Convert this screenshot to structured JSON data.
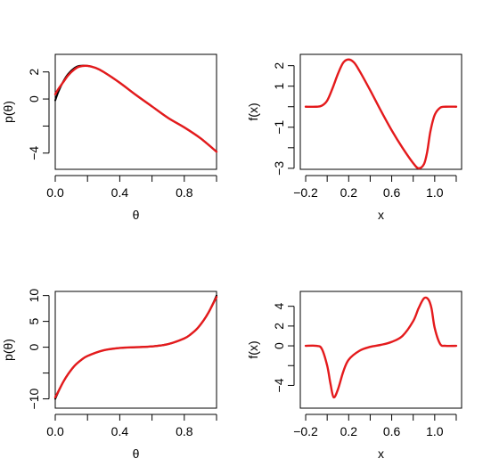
{
  "chart_data": [
    {
      "type": "line",
      "panel": "top-left",
      "xlabel": "θ",
      "ylabel": "p(θ)",
      "xlim": [
        0,
        1
      ],
      "ylim": [
        -5.2,
        3.3
      ],
      "xticks": [
        0.0,
        0.4,
        0.8
      ],
      "xtick_labels": [
        "0.0",
        "0.4",
        "0.8"
      ],
      "xticks_minor": [
        0.2,
        0.6,
        1.0
      ],
      "yticks": [
        -4,
        0,
        2
      ],
      "ytick_labels": [
        "−4",
        "0",
        "2"
      ],
      "yticks_minor": [
        -2
      ],
      "series": [
        {
          "color": "#000000",
          "x": [
            0,
            0.02,
            0.05,
            0.08,
            0.12,
            0.15,
            0.2,
            0.25,
            0.3,
            0.4,
            0.5,
            0.6,
            0.7,
            0.8,
            0.9,
            1.0
          ],
          "y": [
            -0.1,
            0.55,
            1.3,
            1.85,
            2.3,
            2.45,
            2.45,
            2.3,
            2.0,
            1.2,
            0.3,
            -0.55,
            -1.4,
            -2.1,
            -2.9,
            -3.9
          ]
        },
        {
          "color": "#e41a1c",
          "x": [
            0,
            0.02,
            0.05,
            0.08,
            0.12,
            0.15,
            0.2,
            0.25,
            0.3,
            0.4,
            0.5,
            0.6,
            0.7,
            0.8,
            0.9,
            1.0
          ],
          "y": [
            0.35,
            0.75,
            1.25,
            1.75,
            2.2,
            2.4,
            2.45,
            2.3,
            2.0,
            1.2,
            0.3,
            -0.55,
            -1.4,
            -2.1,
            -2.9,
            -3.9
          ]
        }
      ]
    },
    {
      "type": "line",
      "panel": "top-right",
      "xlabel": "x",
      "ylabel": "f(x)",
      "xlim": [
        -0.25,
        1.25
      ],
      "ylim": [
        -3.05,
        2.55
      ],
      "xticks": [
        -0.2,
        0.2,
        0.6,
        1.0
      ],
      "xtick_labels": [
        "−0.2",
        "0.2",
        "0.6",
        "1.0"
      ],
      "xticks_minor": [
        0.0,
        0.4,
        0.8,
        1.2
      ],
      "yticks": [
        -3,
        -1,
        1,
        2
      ],
      "ytick_labels": [
        "−3",
        "−1",
        "1",
        "2"
      ],
      "yticks_minor": [
        0,
        -2
      ],
      "series": [
        {
          "color": "#e41a1c",
          "x": [
            -0.2,
            -0.1,
            -0.05,
            0.0,
            0.05,
            0.1,
            0.15,
            0.2,
            0.25,
            0.3,
            0.4,
            0.5,
            0.6,
            0.7,
            0.8,
            0.85,
            0.9,
            0.93,
            0.96,
            1.0,
            1.05,
            1.1,
            1.2
          ],
          "y": [
            0,
            0,
            0.05,
            0.3,
            0.9,
            1.6,
            2.15,
            2.3,
            2.15,
            1.75,
            0.8,
            -0.2,
            -1.15,
            -2.0,
            -2.75,
            -3.0,
            -2.8,
            -2.2,
            -1.2,
            -0.4,
            -0.05,
            0,
            0
          ]
        }
      ]
    },
    {
      "type": "line",
      "panel": "bottom-left",
      "xlabel": "θ",
      "ylabel": "p(θ)",
      "xlim": [
        0,
        1
      ],
      "ylim": [
        -11.8,
        10.8
      ],
      "xticks": [
        0.0,
        0.4,
        0.8
      ],
      "xtick_labels": [
        "0.0",
        "0.4",
        "0.8"
      ],
      "xticks_minor": [
        0.2,
        0.6,
        1.0
      ],
      "yticks": [
        -10,
        0,
        5,
        10
      ],
      "ytick_labels": [
        "−10",
        "0",
        "5",
        "10"
      ],
      "yticks_minor": [
        -5
      ],
      "series": [
        {
          "color": "#000000",
          "x": [
            0,
            0.02,
            0.05,
            0.08,
            0.12,
            0.16,
            0.2,
            0.3,
            0.4,
            0.5,
            0.6,
            0.7,
            0.8,
            0.84,
            0.88,
            0.92,
            0.95,
            0.98,
            1.0
          ],
          "y": [
            -10,
            -8.6,
            -6.7,
            -5.2,
            -3.6,
            -2.5,
            -1.7,
            -0.6,
            -0.15,
            0,
            0.15,
            0.6,
            1.7,
            2.5,
            3.6,
            5.2,
            6.7,
            8.6,
            10
          ]
        },
        {
          "color": "#e41a1c",
          "x": [
            0,
            0.02,
            0.05,
            0.08,
            0.12,
            0.16,
            0.2,
            0.3,
            0.4,
            0.5,
            0.6,
            0.7,
            0.8,
            0.84,
            0.88,
            0.92,
            0.95,
            0.98,
            1.0
          ],
          "y": [
            -9.7,
            -8.5,
            -6.7,
            -5.2,
            -3.6,
            -2.5,
            -1.7,
            -0.6,
            -0.15,
            0,
            0.15,
            0.6,
            1.7,
            2.5,
            3.6,
            5.2,
            6.7,
            8.5,
            9.7
          ]
        }
      ]
    },
    {
      "type": "line",
      "panel": "bottom-right",
      "xlabel": "x",
      "ylabel": "f(x)",
      "xlim": [
        -0.25,
        1.25
      ],
      "ylim": [
        -6.3,
        5.5
      ],
      "xticks": [
        -0.2,
        0.2,
        0.6,
        1.0
      ],
      "xtick_labels": [
        "−0.2",
        "0.2",
        "0.6",
        "1.0"
      ],
      "xticks_minor": [
        0.0,
        0.4,
        0.8,
        1.2
      ],
      "yticks": [
        -4,
        0,
        2,
        4
      ],
      "ytick_labels": [
        "−4",
        "0",
        "2",
        "4"
      ],
      "yticks_minor": [
        -2
      ],
      "series": [
        {
          "color": "#e41a1c",
          "x": [
            -0.2,
            -0.1,
            -0.05,
            0.0,
            0.03,
            0.06,
            0.1,
            0.15,
            0.2,
            0.3,
            0.4,
            0.5,
            0.6,
            0.7,
            0.8,
            0.85,
            0.9,
            0.94,
            0.97,
            1.0,
            1.05,
            1.1,
            1.2
          ],
          "y": [
            0,
            0,
            -0.3,
            -2.0,
            -3.8,
            -5.2,
            -4.4,
            -2.6,
            -1.4,
            -0.5,
            -0.1,
            0.1,
            0.4,
            1.0,
            2.5,
            3.8,
            4.8,
            4.7,
            3.8,
            1.8,
            0.2,
            0,
            0
          ]
        }
      ]
    }
  ]
}
